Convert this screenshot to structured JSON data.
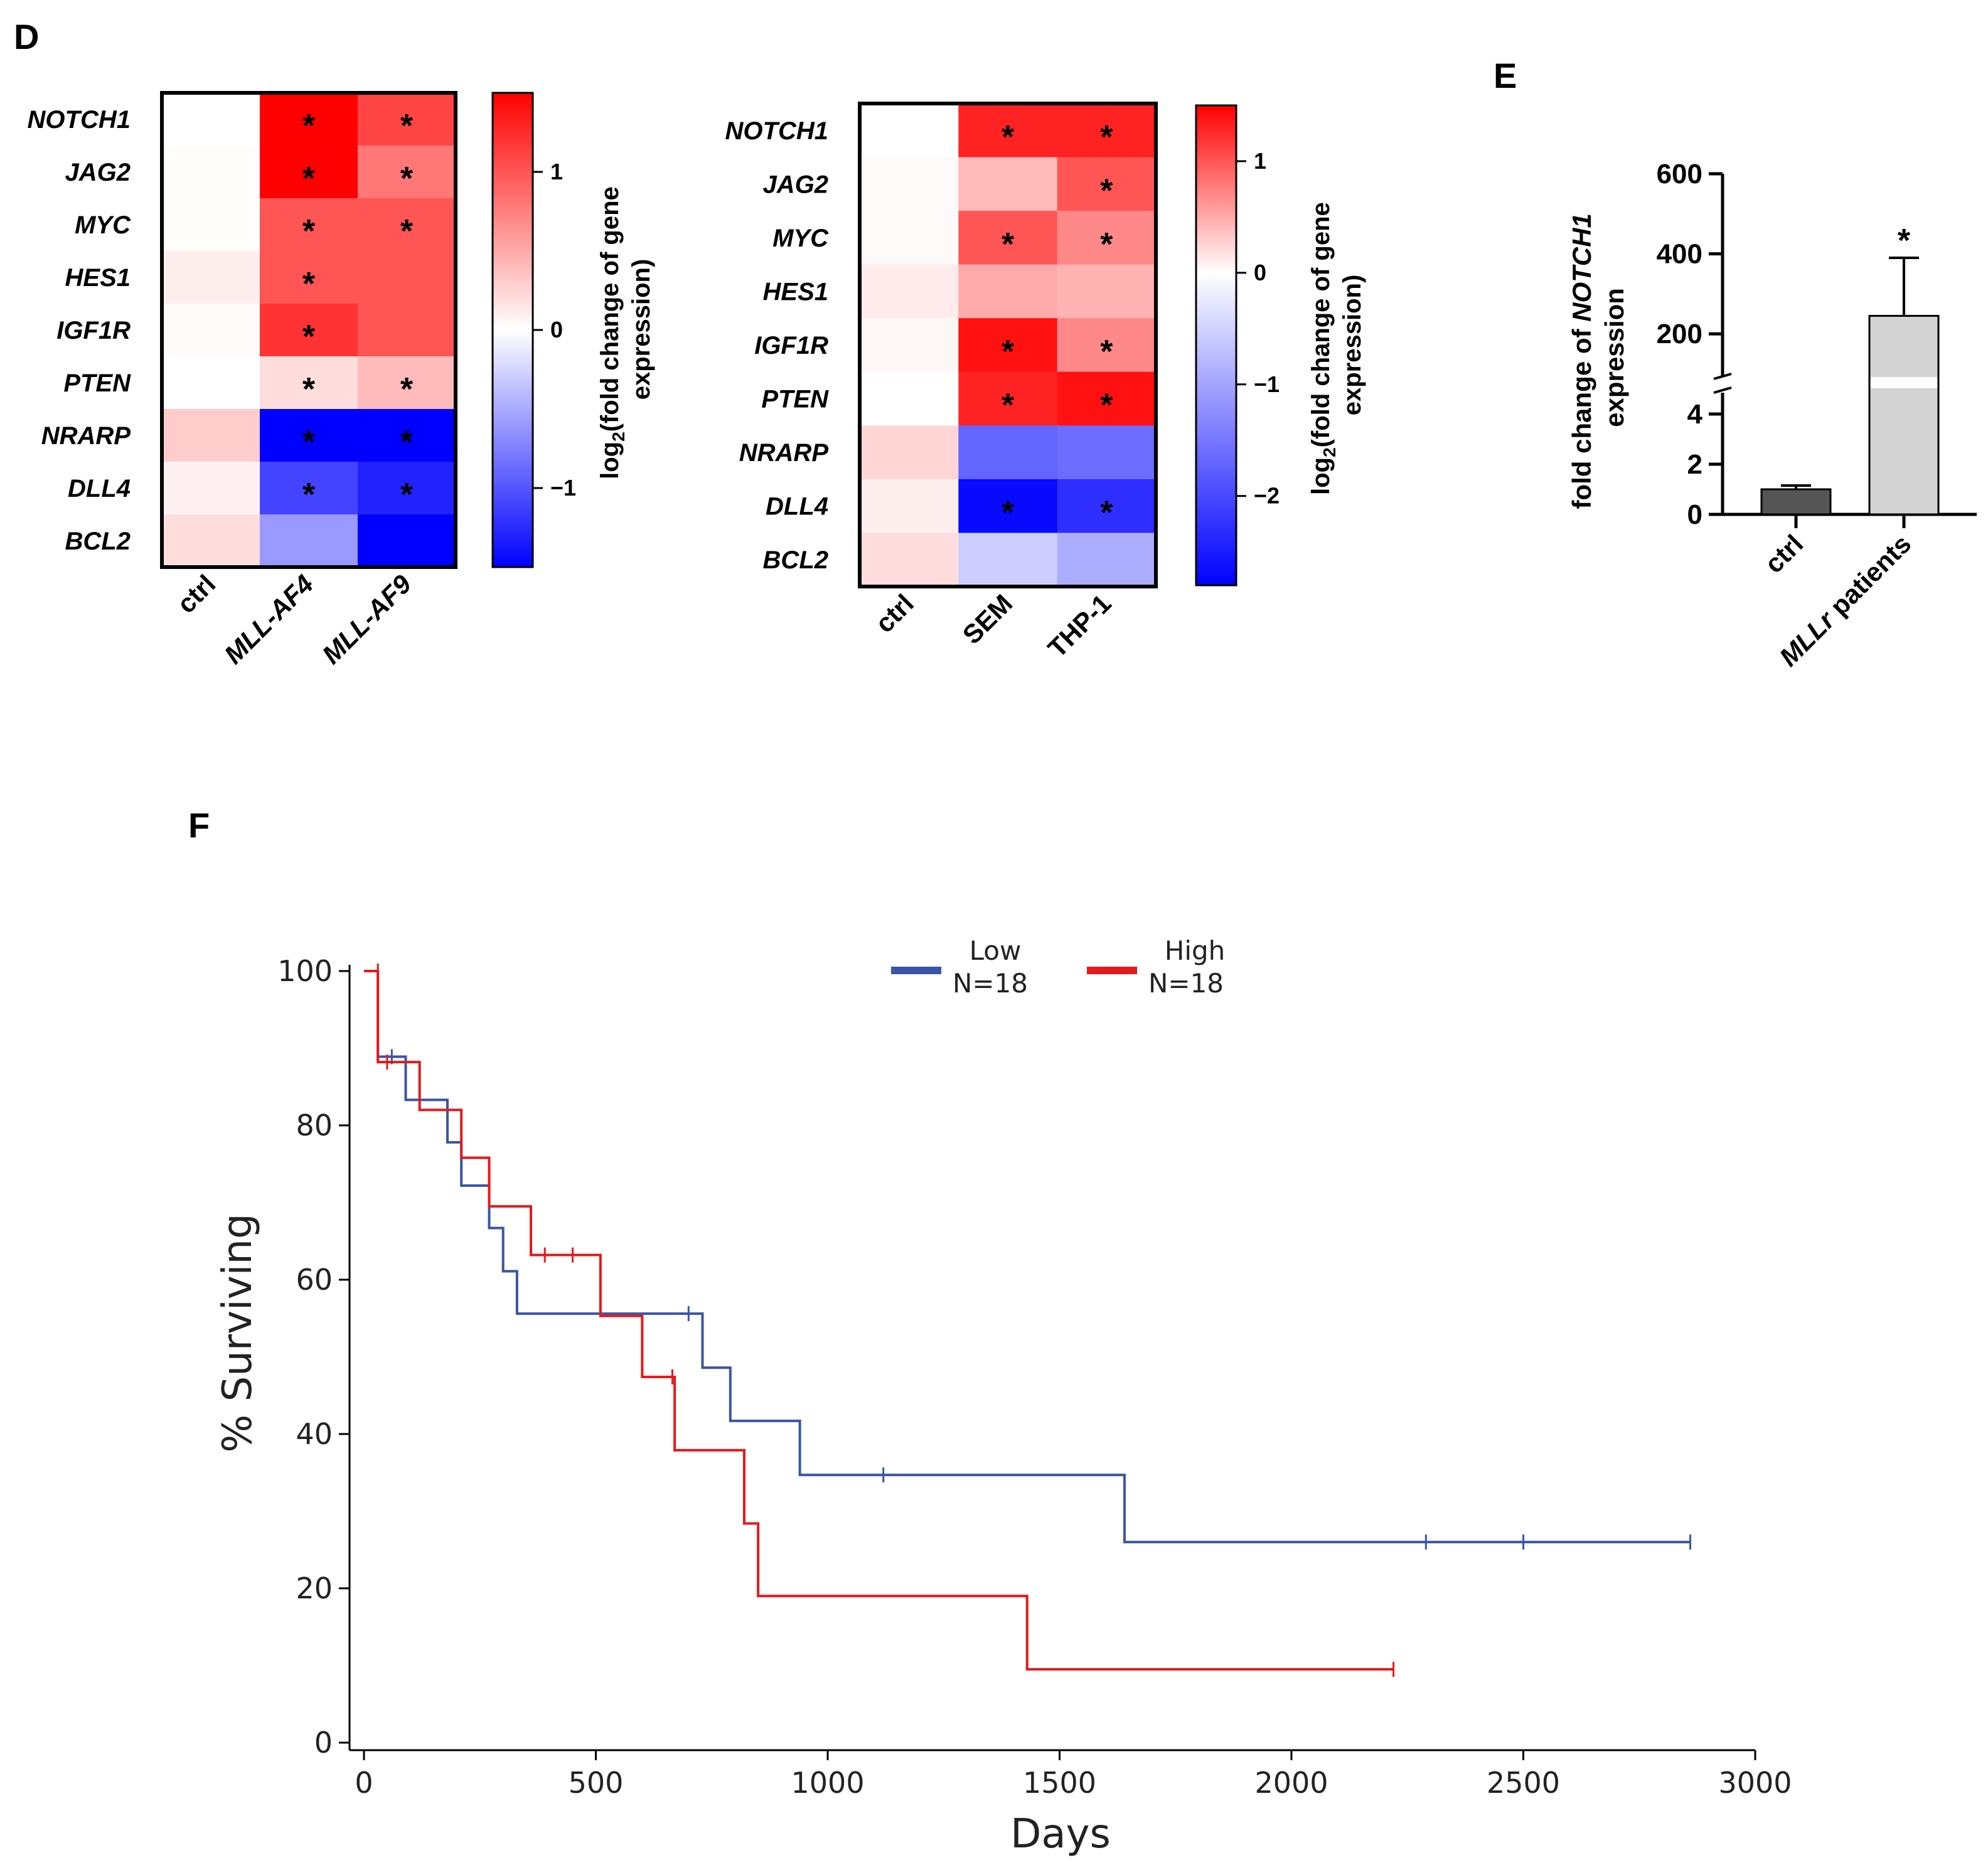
{
  "panels": {
    "D": "D",
    "E": "E",
    "F": "F"
  },
  "colors": {
    "high": "#ff0000",
    "mid": "#ffffff",
    "low": "#0000ff",
    "km_low": "#3a55a5",
    "km_high": "#e31a1c",
    "bar_ctrl": "#555555",
    "bar_patients": "#d3d3d3"
  },
  "chart_data": [
    {
      "type": "heatmap",
      "id": "heatmap1",
      "rows": [
        "NOTCH1",
        "JAG2",
        "MYC",
        "HES1",
        "IGF1R",
        "PTEN",
        "NRARP",
        "DLL4",
        "BCL2"
      ],
      "columns": [
        "ctrl",
        "MLL-AF4",
        "MLL-AF9"
      ],
      "values": [
        [
          0.0,
          1.5,
          1.1
        ],
        [
          0.02,
          1.5,
          0.8
        ],
        [
          0.02,
          1.0,
          1.0
        ],
        [
          0.1,
          1.0,
          1.0
        ],
        [
          0.03,
          1.2,
          1.0
        ],
        [
          0.0,
          0.2,
          0.4
        ],
        [
          0.3,
          -1.5,
          -1.5
        ],
        [
          0.08,
          -1.1,
          -1.3
        ],
        [
          0.2,
          -0.6,
          -1.5
        ]
      ],
      "significant": [
        [
          false,
          true,
          true
        ],
        [
          false,
          true,
          true
        ],
        [
          false,
          true,
          true
        ],
        [
          false,
          true,
          false
        ],
        [
          false,
          true,
          false
        ],
        [
          false,
          true,
          true
        ],
        [
          false,
          true,
          true
        ],
        [
          false,
          true,
          true
        ],
        [
          false,
          false,
          false
        ]
      ],
      "star_symbol": "*",
      "colorbar": {
        "min": -1.5,
        "max": 1.5,
        "ticks": [
          1,
          0,
          -1
        ],
        "tick_labels": [
          "1",
          "0",
          "−1"
        ]
      },
      "label_line1": "log",
      "label_sub": "2",
      "label_line1_rest": "(fold change of gene",
      "label_line2": "expression)"
    },
    {
      "type": "heatmap",
      "id": "heatmap2",
      "rows": [
        "NOTCH1",
        "JAG2",
        "MYC",
        "HES1",
        "IGF1R",
        "PTEN",
        "NRARP",
        "DLL4",
        "BCL2"
      ],
      "columns": [
        "ctrl",
        "SEM",
        "THP-1"
      ],
      "values": [
        [
          0.0,
          1.3,
          1.3
        ],
        [
          0.03,
          0.4,
          1.0
        ],
        [
          0.03,
          1.0,
          0.7
        ],
        [
          0.12,
          0.5,
          0.45
        ],
        [
          0.05,
          1.4,
          0.7
        ],
        [
          0.0,
          1.3,
          1.4
        ],
        [
          0.25,
          -1.7,
          -1.6
        ],
        [
          0.1,
          -2.7,
          -2.3
        ],
        [
          0.2,
          -0.55,
          -0.9
        ]
      ],
      "significant": [
        [
          false,
          true,
          true
        ],
        [
          false,
          false,
          true
        ],
        [
          false,
          true,
          true
        ],
        [
          false,
          false,
          false
        ],
        [
          false,
          true,
          true
        ],
        [
          false,
          true,
          true
        ],
        [
          false,
          false,
          false
        ],
        [
          false,
          true,
          true
        ],
        [
          false,
          false,
          false
        ]
      ],
      "star_symbol": "*",
      "colorbar": {
        "min": -2.8,
        "max": 1.5,
        "ticks": [
          1,
          0,
          -1,
          -2
        ],
        "tick_labels": [
          "1",
          "0",
          "−1",
          "−2"
        ]
      },
      "label_line1": "log",
      "label_sub": "2",
      "label_line1_rest": "(fold change of gene",
      "label_line2": "expression)"
    },
    {
      "type": "bar",
      "id": "barE",
      "categories": [
        "ctrl",
        "MLLr patients"
      ],
      "category_italic_part": [
        "",
        "MLLr"
      ],
      "category_plain_part": [
        "ctrl",
        " patients"
      ],
      "values": [
        1.0,
        245
      ],
      "errors": [
        0.15,
        145
      ],
      "significance": [
        "",
        "*"
      ],
      "ylabel_part1": "fold change of ",
      "ylabel_italic": "NOTCH1",
      "ylabel_line2": "expression",
      "upper_segment": {
        "range": [
          100,
          600
        ],
        "ticks": [
          200,
          400,
          600
        ]
      },
      "lower_segment": {
        "range": [
          0,
          5
        ],
        "ticks": [
          0,
          2,
          4
        ]
      }
    },
    {
      "type": "line",
      "id": "kmF",
      "xlabel": "Days",
      "ylabel": "% Surviving",
      "xlim": [
        0,
        3000
      ],
      "ylim": [
        0,
        100
      ],
      "xticks": [
        0,
        500,
        1000,
        1500,
        2000,
        2500,
        3000
      ],
      "yticks": [
        0,
        20,
        40,
        60,
        80,
        100
      ],
      "series": [
        {
          "name": "Low",
          "n_label": "N=18",
          "steps": [
            [
              0,
              100
            ],
            [
              30,
              88.9
            ],
            [
              90,
              83.3
            ],
            [
              180,
              77.8
            ],
            [
              210,
              72.2
            ],
            [
              270,
              66.7
            ],
            [
              300,
              61.1
            ],
            [
              330,
              55.6
            ],
            [
              730,
              48.6
            ],
            [
              790,
              41.7
            ],
            [
              940,
              34.7
            ],
            [
              1640,
              26.0
            ],
            [
              2860,
              26.0
            ]
          ],
          "censor": [
            [
              60,
              88.9
            ],
            [
              700,
              55.6
            ],
            [
              1120,
              34.7
            ],
            [
              2290,
              26.0
            ],
            [
              2500,
              26.0
            ],
            [
              2860,
              26.0
            ]
          ]
        },
        {
          "name": "High",
          "n_label": "N=18",
          "steps": [
            [
              0,
              100
            ],
            [
              30,
              88.2
            ],
            [
              120,
              82.0
            ],
            [
              210,
              75.8
            ],
            [
              270,
              69.5
            ],
            [
              360,
              63.2
            ],
            [
              510,
              55.3
            ],
            [
              600,
              47.4
            ],
            [
              670,
              37.9
            ],
            [
              820,
              28.4
            ],
            [
              850,
              19.0
            ],
            [
              1430,
              9.5
            ],
            [
              2220,
              9.5
            ]
          ],
          "censor": [
            [
              30,
              100
            ],
            [
              50,
              88.2
            ],
            [
              390,
              63.2
            ],
            [
              450,
              63.2
            ],
            [
              665,
              47.4
            ],
            [
              2220,
              9.5
            ]
          ]
        }
      ]
    }
  ]
}
